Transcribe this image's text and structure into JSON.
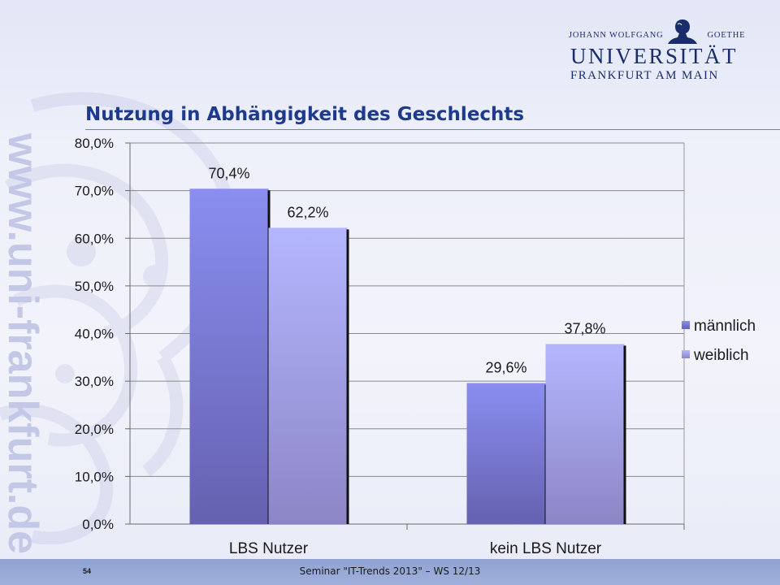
{
  "header": {
    "logo_top_left": "JOHANN WOLFGANG",
    "logo_top_right": "GOETHE",
    "logo_university": "UNIVERSITÄT",
    "logo_city": "FRANKFURT AM MAIN",
    "watermark_url": "www.uni-frankfurt.de"
  },
  "slide": {
    "title": "Nutzung in Abhängigkeit des Geschlechts"
  },
  "footer": {
    "page_number": "54",
    "text": "Seminar \"IT-Trends 2013\" – WS 12/13"
  },
  "colors": {
    "title": "#1f3a8c",
    "male_top": "#8a8ef0",
    "male_bottom": "#6561b0",
    "female_top": "#b4b6ff",
    "female_bottom": "#8c86c6",
    "footer": "#97a8d6"
  },
  "chart_data": {
    "type": "bar",
    "categories": [
      "LBS Nutzer",
      "kein LBS Nutzer"
    ],
    "series": [
      {
        "name": "männlich",
        "values": [
          70.4,
          29.6
        ],
        "labels": [
          "70,4%",
          "29,6%"
        ]
      },
      {
        "name": "weiblich",
        "values": [
          62.2,
          37.8
        ],
        "labels": [
          "62,2%",
          "37,8%"
        ]
      }
    ],
    "yticks": [
      "0,0%",
      "10,0%",
      "20,0%",
      "30,0%",
      "40,0%",
      "50,0%",
      "60,0%",
      "70,0%",
      "80,0%"
    ],
    "ylim": [
      0,
      80
    ],
    "grid": true,
    "legend": "right"
  }
}
